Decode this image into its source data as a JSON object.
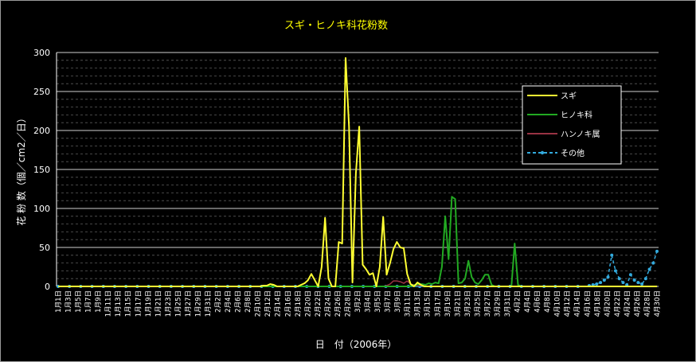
{
  "chart_data": {
    "type": "line",
    "title": "スギ・ヒノキ科花粉数",
    "xlabel": "日　付（2006年）",
    "ylabel": "花 粉 数（個／cm2／日）",
    "ylim": [
      0,
      300
    ],
    "yticks": [
      "0",
      "50",
      "100",
      "150",
      "200",
      "250",
      "300"
    ],
    "grid": true,
    "legend_position": "right",
    "tick_labels": [
      "1月1日",
      "1月3日",
      "1月5日",
      "1月7日",
      "1月9日",
      "1月11日",
      "1月13日",
      "1月15日",
      "1月17日",
      "1月19日",
      "1月21日",
      "1月23日",
      "1月25日",
      "1月27日",
      "1月29日",
      "1月31日",
      "2月2日",
      "2月4日",
      "2月6日",
      "2月8日",
      "2月10日",
      "2月12日",
      "2月14日",
      "2月16日",
      "2月18日",
      "2月20日",
      "2月22日",
      "2月24日",
      "2月26日",
      "2月28日",
      "3月2日",
      "3月4日",
      "3月5日",
      "3月7日",
      "3月9日",
      "3月11日",
      "3月13日",
      "3月15日",
      "3月17日",
      "3月19日",
      "3月21日",
      "3月23日",
      "3月25日",
      "3月27日",
      "3月29日",
      "3月31日",
      "4月2日",
      "4月4日",
      "4月6日",
      "4月8日",
      "4月10日",
      "4月12日",
      "4月14日",
      "4月16日",
      "4月18日",
      "4月20日",
      "4月22日",
      "4月24日",
      "4月26日",
      "4月28日",
      "4月30日"
    ],
    "series": [
      {
        "name": "スギ",
        "color": "#ffff33",
        "values": [
          0,
          0,
          0,
          0,
          0,
          0,
          0,
          0,
          0,
          0,
          0,
          0,
          0,
          0,
          0,
          0,
          0,
          0,
          0,
          0,
          0,
          0,
          0,
          0,
          0,
          0,
          0,
          0,
          0,
          0,
          0,
          0,
          0,
          0,
          0,
          0,
          0,
          0,
          0,
          0,
          0,
          0,
          0,
          0,
          0,
          0,
          0,
          0,
          0,
          0,
          0,
          0,
          0,
          0,
          0,
          0,
          0,
          0,
          0,
          0,
          1,
          1,
          3,
          2,
          0,
          0,
          0,
          0,
          0,
          0,
          0,
          2,
          4,
          8,
          16,
          8,
          0,
          25,
          88,
          10,
          0,
          0,
          57,
          55,
          293,
          205,
          5,
          145,
          205,
          28,
          22,
          15,
          17,
          0,
          25,
          89,
          15,
          30,
          48,
          57,
          50,
          49,
          16,
          3,
          0,
          5,
          2,
          0,
          0,
          0,
          0,
          0,
          0,
          0,
          0,
          0,
          0,
          0,
          0,
          0,
          0,
          0,
          0,
          0,
          0,
          0,
          0,
          0,
          0,
          0,
          0,
          0,
          0,
          0,
          0,
          0,
          0,
          0,
          0,
          0,
          0,
          0,
          0,
          0,
          0,
          0,
          0,
          0,
          0,
          0,
          0,
          0,
          0,
          0,
          0,
          0,
          0,
          0,
          0,
          0,
          0,
          0,
          0,
          0,
          0,
          0,
          0,
          0,
          0,
          0,
          0,
          0,
          0,
          0,
          0,
          0
        ]
      },
      {
        "name": "ヒノキ科",
        "color": "#22aa22",
        "values": [
          0,
          0,
          0,
          0,
          0,
          0,
          0,
          0,
          0,
          0,
          0,
          0,
          0,
          0,
          0,
          0,
          0,
          0,
          0,
          0,
          0,
          0,
          0,
          0,
          0,
          0,
          0,
          0,
          0,
          0,
          0,
          0,
          0,
          0,
          0,
          0,
          0,
          0,
          0,
          0,
          0,
          0,
          0,
          0,
          0,
          0,
          0,
          0,
          0,
          0,
          0,
          0,
          0,
          0,
          0,
          0,
          0,
          0,
          0,
          0,
          0,
          0,
          0,
          0,
          0,
          0,
          0,
          0,
          0,
          0,
          0,
          0,
          0,
          0,
          0,
          0,
          0,
          0,
          0,
          0,
          0,
          0,
          0,
          0,
          0,
          0,
          0,
          0,
          0,
          0,
          0,
          0,
          0,
          0,
          0,
          0,
          0,
          0,
          0,
          0,
          0,
          0,
          0,
          0,
          0,
          0,
          0,
          1,
          2,
          3,
          3,
          2,
          4,
          3,
          5,
          4,
          25,
          90,
          35,
          115,
          112,
          4,
          5,
          10,
          33,
          12,
          5,
          3,
          8,
          15,
          15,
          2,
          0,
          0,
          0,
          0,
          0,
          0,
          55,
          2,
          0,
          0,
          0,
          0,
          0,
          0,
          0,
          0,
          0,
          0,
          0,
          0,
          0,
          0,
          0,
          0,
          0,
          0,
          0,
          0,
          0,
          0,
          0,
          0,
          0,
          0,
          0,
          0,
          0,
          0,
          0,
          0,
          0,
          0,
          0,
          0,
          0,
          0,
          0,
          0,
          0,
          0
        ]
      },
      {
        "name": "ハンノキ属",
        "color": "#993344",
        "values": [
          0,
          0,
          0,
          0,
          0,
          0,
          0,
          0,
          0,
          0,
          0,
          0,
          0,
          0,
          0,
          0,
          0,
          0,
          0,
          0,
          0,
          0,
          0,
          0,
          0,
          0,
          0,
          0,
          0,
          0,
          0,
          0,
          0,
          0,
          0,
          0,
          0,
          0,
          0,
          0,
          0,
          0,
          0,
          0,
          0,
          0,
          0,
          0,
          0,
          0,
          0,
          0,
          0,
          0,
          0,
          0,
          0,
          0,
          0,
          0,
          0,
          0,
          0,
          0,
          0,
          0,
          0,
          0,
          0,
          0,
          0,
          0,
          0,
          0,
          0,
          0,
          0,
          0,
          0,
          0,
          0,
          0,
          0,
          0,
          0,
          0,
          0,
          0,
          0,
          0,
          0,
          0,
          0,
          0,
          0,
          0,
          1,
          3,
          7,
          7,
          6,
          4,
          7,
          3,
          2,
          1,
          1,
          1,
          0,
          0,
          0,
          0,
          0,
          0,
          0,
          0,
          0,
          0,
          0,
          0,
          0,
          0,
          0,
          0,
          0,
          0,
          0,
          0,
          0,
          0,
          0,
          0,
          0,
          0,
          0,
          0,
          0,
          0,
          0,
          0,
          0,
          0,
          0,
          0,
          0,
          0,
          0,
          0,
          0,
          0,
          0,
          0,
          0,
          0,
          0,
          0,
          0,
          0,
          0,
          0,
          0,
          0,
          0,
          0,
          0,
          0,
          0,
          0,
          0,
          0,
          0,
          0,
          0,
          0,
          0,
          0
        ]
      },
      {
        "name": "その他",
        "color": "#33aadd",
        "values": [
          0,
          0,
          0,
          0,
          0,
          0,
          0,
          0,
          0,
          0,
          0,
          0,
          0,
          0,
          0,
          0,
          0,
          0,
          0,
          0,
          0,
          0,
          0,
          0,
          0,
          0,
          0,
          0,
          0,
          0,
          0,
          0,
          0,
          0,
          0,
          0,
          0,
          0,
          0,
          0,
          0,
          0,
          0,
          0,
          0,
          0,
          0,
          0,
          0,
          0,
          0,
          0,
          0,
          0,
          0,
          0,
          0,
          0,
          0,
          0,
          0,
          0,
          0,
          0,
          0,
          0,
          0,
          0,
          0,
          0,
          0,
          0,
          0,
          0,
          0,
          0,
          0,
          0,
          0,
          0,
          0,
          0,
          0,
          0,
          0,
          0,
          0,
          0,
          0,
          0,
          0,
          0,
          0,
          0,
          0,
          0,
          0,
          0,
          0,
          0,
          0,
          0,
          0,
          0,
          0,
          0,
          0,
          0,
          0,
          0,
          0,
          0,
          0,
          0,
          0,
          0,
          0,
          0,
          0,
          0,
          0,
          0,
          0,
          0,
          0,
          0,
          0,
          0,
          0,
          0,
          0,
          0,
          0,
          0,
          0,
          0,
          0,
          0,
          0,
          0,
          0,
          1,
          2,
          3,
          5,
          8,
          12,
          40,
          20,
          10,
          5,
          2,
          15,
          8,
          5,
          3,
          10,
          22,
          30,
          45
        ]
      }
    ]
  }
}
